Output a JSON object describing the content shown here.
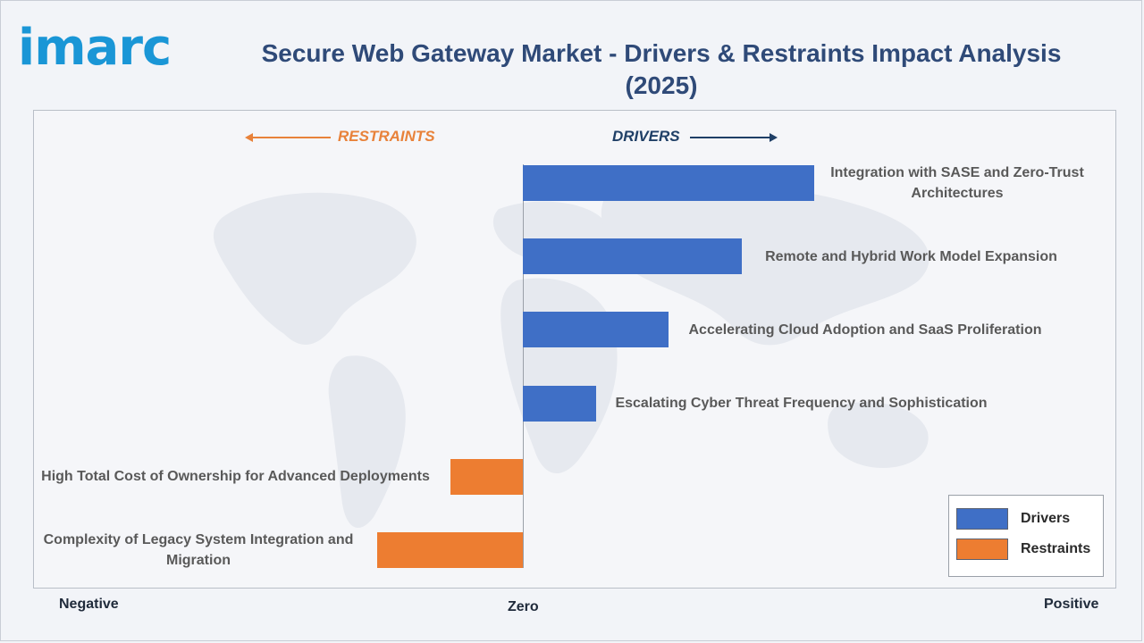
{
  "brand": {
    "logo_text": "imarc",
    "logo_color": "#1a96d6"
  },
  "header": {
    "title": "Secure Web Gateway Market - Drivers & Restraints Impact Analysis (2025)"
  },
  "direction_labels": {
    "restraints": "RESTRAINTS",
    "drivers": "DRIVERS"
  },
  "axis": {
    "negative": "Negative",
    "zero": "Zero",
    "positive": "Positive"
  },
  "legend": {
    "items": [
      {
        "label": "Drivers",
        "color": "#3f6fc6"
      },
      {
        "label": "Restraints",
        "color": "#ed7d31"
      }
    ]
  },
  "chart_data": {
    "type": "bar",
    "orientation": "horizontal",
    "categories": [
      "Integration with SASE and Zero-Trust Architectures",
      "Remote and Hybrid Work Model Expansion",
      "Accelerating Cloud Adoption and SaaS Proliferation",
      "Escalating Cyber Threat Frequency and Sophistication",
      "High Total Cost of Ownership for Advanced Deployments",
      "Complexity of Legacy System Integration and Migration"
    ],
    "series": [
      {
        "name": "Drivers",
        "color": "#3f6fc6",
        "values": [
          4,
          3,
          2,
          1,
          null,
          null
        ]
      },
      {
        "name": "Restraints",
        "color": "#ed7d31",
        "values": [
          null,
          null,
          null,
          null,
          -1,
          -2
        ]
      }
    ],
    "xlim": [
      -7,
      8
    ],
    "xlabel": "",
    "ylabel": "",
    "tick_labels": [
      "Negative",
      "Zero",
      "Positive"
    ],
    "legend_position": "bottom-right",
    "grid": false
  }
}
